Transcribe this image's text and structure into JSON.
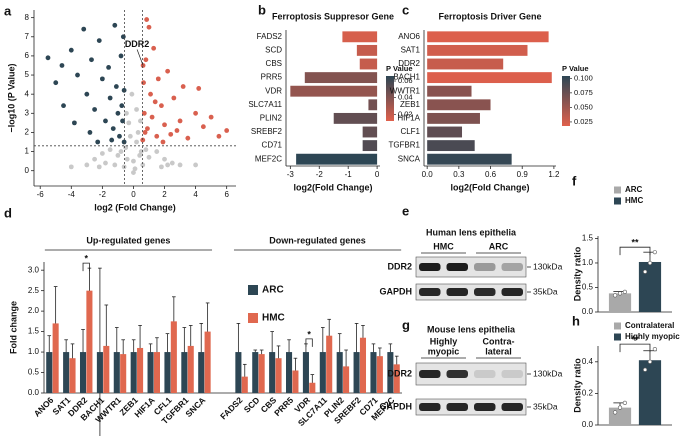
{
  "panel_labels": [
    "a",
    "b",
    "c",
    "d",
    "e",
    "f",
    "g",
    "h"
  ],
  "chart_data": [
    {
      "type": "scatter",
      "xlabel": "log2 (Fold Change)",
      "ylabel": "−log10 (P Value)",
      "xlim": [
        -6.4,
        6.6
      ],
      "ylim": [
        -0.8,
        8.4
      ],
      "xticks": [
        -6,
        -4,
        -2,
        0,
        2,
        4,
        6
      ],
      "yticks": [
        0,
        1,
        2,
        3,
        4,
        5,
        6,
        7,
        8
      ],
      "vlines": [
        -0.58,
        0.58
      ],
      "hline": 1.3,
      "series": [
        {
          "color": "#c9c9c9",
          "x": [
            -3,
            -2.5,
            -2,
            -1.5,
            -1,
            -0.5,
            0,
            0.5,
            1,
            1.5,
            2,
            2.5,
            3,
            -1.2,
            -0.3,
            0.2,
            -0.2,
            0.3,
            0.1,
            -0.6,
            0.6,
            1.8,
            -1.8,
            -0.4,
            0.4,
            -4,
            4,
            0,
            -0.1,
            0.2,
            -0.8,
            0.8,
            -2.2,
            2.2,
            -0.45,
            0.45
          ],
          "y": [
            0.3,
            0.6,
            0.9,
            1.1,
            0.8,
            1.2,
            0.5,
            1.0,
            0.7,
            1.0,
            0.6,
            0.4,
            0.3,
            0.3,
            2.5,
            3.2,
            1.8,
            2.0,
            0.1,
            0.2,
            0.3,
            0.2,
            0.4,
            0.6,
            0.8,
            0.2,
            0.3,
            -0.1,
            4.0,
            1.5,
            1.0,
            1.1,
            0.2,
            0.3,
            3.0,
            2.6
          ]
        },
        {
          "color": "#2d4654",
          "x": [
            -5.5,
            -5,
            -4.6,
            -4,
            -3.6,
            -3.2,
            -3,
            -2.7,
            -2.5,
            -2.2,
            -2,
            -1.8,
            -1.6,
            -1.5,
            -1.3,
            -1.2,
            -1.1,
            -1,
            -0.9,
            -0.8,
            -0.7,
            -0.6,
            -0.6,
            -2.8,
            -3.8,
            -4.5,
            -0.75,
            -1.4,
            -2.3,
            -0.65
          ],
          "y": [
            5.9,
            4.6,
            5.5,
            6.3,
            5,
            7.4,
            4,
            5.8,
            3.2,
            6.8,
            4.8,
            2.6,
            5.4,
            3.8,
            2.2,
            7.6,
            4.4,
            3,
            1.8,
            6,
            2.6,
            1.5,
            4.2,
            2,
            2.5,
            3.4,
            3.4,
            1.6,
            1.5,
            7.0
          ]
        },
        {
          "color": "#d9604f",
          "x": [
            0.6,
            0.7,
            0.8,
            0.9,
            1,
            1.1,
            1.2,
            1.3,
            1.5,
            1.6,
            1.8,
            2,
            2.2,
            2.4,
            2.6,
            3,
            3.2,
            3.5,
            4,
            4.5,
            5,
            5.5,
            6,
            0.65,
            0.85,
            1.4,
            2.8,
            4.2,
            0.75,
            1.9,
            0.62
          ],
          "y": [
            1.6,
            3,
            5.8,
            2.2,
            7.5,
            4,
            2.8,
            6.4,
            1.8,
            4.8,
            3.4,
            2.4,
            5.2,
            1.9,
            3.8,
            2.6,
            4.4,
            1.7,
            3,
            2.3,
            2.8,
            1.8,
            2.1,
            4.6,
            7.9,
            3.6,
            2.1,
            4.3,
            2.0,
            1.5,
            5.5
          ]
        }
      ],
      "annotations": [
        {
          "text": "DDR2",
          "x": 0.62,
          "y": 5.5
        }
      ]
    },
    {
      "type": "hbar",
      "title": "Ferroptosis Suppresor Gene",
      "xlabel": "log2(Fold Change)",
      "categories": [
        "FADS2",
        "SCD",
        "CBS",
        "PRR5",
        "VDR",
        "SLC7A11",
        "PLIN2",
        "SREBF2",
        "CD71",
        "MEF2C"
      ],
      "values": [
        -1.2,
        -0.7,
        -0.6,
        -2.5,
        -3.0,
        -0.3,
        -1.5,
        -0.5,
        -0.5,
        -2.8
      ],
      "pvalues": [
        0.015,
        0.02,
        0.02,
        0.04,
        0.035,
        0.045,
        0.05,
        0.05,
        0.055,
        0.066
      ],
      "xlim": [
        -3.15,
        0.1
      ],
      "xticks": [
        -3,
        -2,
        -1,
        0
      ],
      "colorbar": {
        "title": "P Value",
        "range": [
          0.012,
          0.066
        ],
        "ticks": [
          0.02,
          0.04,
          0.06
        ],
        "colors": [
          "#e0604c",
          "#2d4654"
        ]
      }
    },
    {
      "type": "hbar",
      "title": "Ferroptosis Driver Gene",
      "xlabel": "log2(Fold Change)",
      "categories": [
        "ANO6",
        "SAT1",
        "DDR2",
        "BACH1",
        "WWTR1",
        "ZEB1",
        "HIF1A",
        "CLF1",
        "TGFBR1",
        "SNCA"
      ],
      "values": [
        1.15,
        0.95,
        0.72,
        1.18,
        0.42,
        0.6,
        0.5,
        0.33,
        0.45,
        0.8
      ],
      "pvalues": [
        0.02,
        0.025,
        0.03,
        0.02,
        0.06,
        0.06,
        0.065,
        0.08,
        0.09,
        0.1
      ],
      "xlim": [
        -0.03,
        1.22
      ],
      "xticks": [
        {
          "value": 0,
          "label": "0.0"
        },
        0.3,
        0.6,
        0.9,
        1.2
      ],
      "colorbar": {
        "title": "P Value",
        "range": [
          0.018,
          0.104
        ],
        "ticks": [
          0.025,
          {
            "value": 0.05,
            "label": "0.050"
          },
          0.075,
          {
            "value": 0.1,
            "label": "0.100"
          }
        ],
        "colors": [
          "#e0604c",
          "#2d4654"
        ]
      }
    },
    {
      "type": "bar",
      "ylabel": "Fold change",
      "categories": [
        "ANO6",
        "SAT1",
        "DDR2",
        "BACH1",
        "WWTR1",
        "ZEB1",
        "HIF1A",
        "CFL1",
        "TGFBR1",
        "SNCA",
        "FADS2",
        "SCD",
        "CBS",
        "PRR5",
        "VDR",
        "SLC7A11",
        "PLIN2",
        "SREBF2",
        "CD71",
        "MEF2C"
      ],
      "groups": [
        {
          "label": "Up-regulated genes",
          "start": "ANO6",
          "end": "SNCA"
        },
        {
          "label": "Down-regulated genes",
          "start": "FADS2",
          "end": "MEF2C"
        }
      ],
      "ylim": [
        0,
        3.2
      ],
      "yticks": [
        {
          "value": 0,
          "label": "0.0"
        },
        0.5,
        {
          "value": 1,
          "label": "1.0"
        },
        1.5,
        {
          "value": 2,
          "label": "2.0"
        },
        2.5,
        {
          "value": 3,
          "label": "3.0"
        }
      ],
      "series": [
        {
          "name": "ARC",
          "color": "#2d4654",
          "values": [
            1,
            1,
            1,
            1,
            1,
            1,
            1,
            1,
            1,
            1,
            1,
            1,
            1,
            1,
            1,
            1,
            1,
            1,
            1,
            1
          ],
          "errors": [
            0.4,
            0.3,
            0.55,
            2.05,
            0.6,
            0.3,
            0.2,
            0.45,
            0.6,
            0.7,
            0.7,
            0.05,
            0.5,
            0.3,
            0.2,
            0.6,
            0.45,
            0.7,
            0.2,
            0.2
          ]
        },
        {
          "name": "HMC",
          "color": "#e0684f",
          "values": [
            1.7,
            0.85,
            2.5,
            1.15,
            0.95,
            1.1,
            1.0,
            1.75,
            1.15,
            1.5,
            0.4,
            0.95,
            0.85,
            0.55,
            0.25,
            1.4,
            0.65,
            1.35,
            0.9,
            0.7
          ],
          "errors": [
            0.9,
            0.35,
            0.55,
            1.0,
            0.35,
            0.55,
            0.35,
            0.6,
            0.5,
            0.7,
            0.3,
            0.1,
            0.3,
            0.3,
            0.2,
            0.4,
            0.4,
            0.3,
            0.2,
            0.2
          ]
        }
      ],
      "annotations": [
        {
          "text": "*",
          "category": "DDR2"
        },
        {
          "text": "*",
          "category": "VDR"
        }
      ]
    },
    {
      "type": "bar",
      "ylabel": "Density ratio",
      "categories": [
        null
      ],
      "ylim": [
        0,
        1.55
      ],
      "yticks": [
        {
          "value": 0,
          "label": "0.0"
        },
        0.5,
        {
          "value": 1,
          "label": "1.0"
        },
        1.5
      ],
      "series": [
        {
          "name": "ARC",
          "color": "#a9a9a9",
          "values": [
            0.38
          ],
          "errors": [
            0.04
          ],
          "points": [
            [
              0.34,
              0.38,
              0.41
            ]
          ]
        },
        {
          "name": "HMC",
          "color": "#2d4654",
          "values": [
            1.02
          ],
          "errors": [
            0.2
          ],
          "points": [
            [
              0.82,
              1.0,
              1.22
            ]
          ]
        }
      ],
      "annotations": [
        {
          "text": "**"
        }
      ]
    },
    {
      "type": "bar",
      "ylabel": "Density ratio",
      "categories": [
        null
      ],
      "ylim": [
        0,
        0.5
      ],
      "yticks": [
        {
          "value": 0,
          "label": "0.0"
        },
        0.2,
        0.4
      ],
      "series": [
        {
          "name": "Contralateral",
          "color": "#a9a9a9",
          "values": [
            0.11
          ],
          "errors": [
            0.03
          ],
          "points": [
            [
              0.08,
              0.11,
              0.14
            ]
          ]
        },
        {
          "name": "Highly myopic",
          "color": "#2d4654",
          "values": [
            0.41
          ],
          "errors": [
            0.06
          ],
          "points": [
            [
              0.35,
              0.4,
              0.48
            ]
          ]
        }
      ],
      "annotations": [
        {
          "text": "**"
        }
      ]
    }
  ],
  "blots": [
    {
      "title": "Human lens epithelia",
      "lanes": [
        [
          "HMC"
        ],
        [
          "ARC"
        ]
      ],
      "rows": [
        {
          "label": "DDR2",
          "marker": "130kDa"
        },
        {
          "label": "GAPDH",
          "marker": "35kDa"
        }
      ]
    },
    {
      "title": "Mouse lens epithelia",
      "lanes": [
        [
          "Highly",
          "myopic"
        ],
        [
          "Contra-",
          "lateral"
        ]
      ],
      "rows": [
        {
          "label": "DDR2",
          "marker": "130kDa"
        },
        {
          "label": "GAPDH",
          "marker": "35kDa"
        }
      ]
    }
  ]
}
